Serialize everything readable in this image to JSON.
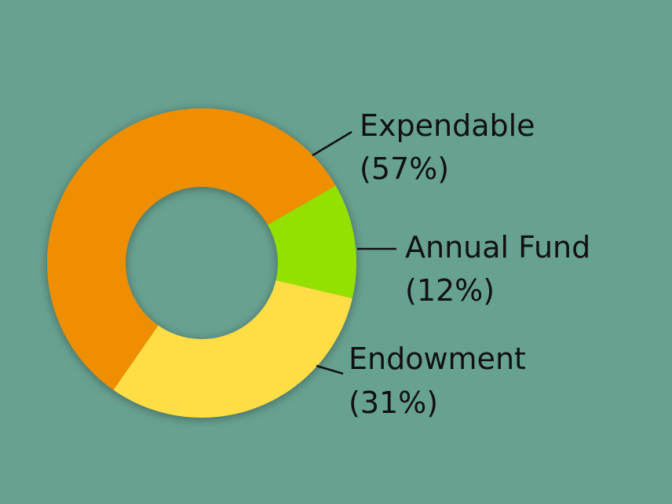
{
  "chart_data": {
    "type": "donut",
    "categories": [
      "Expendable",
      "Annual Fund",
      "Endowment"
    ],
    "values": [
      57,
      12,
      31
    ],
    "value_labels": [
      "(57%)",
      "(12%)",
      "(31%)"
    ],
    "colors": [
      "#ee8e00",
      "#94e000",
      "#ffdd44"
    ]
  }
}
